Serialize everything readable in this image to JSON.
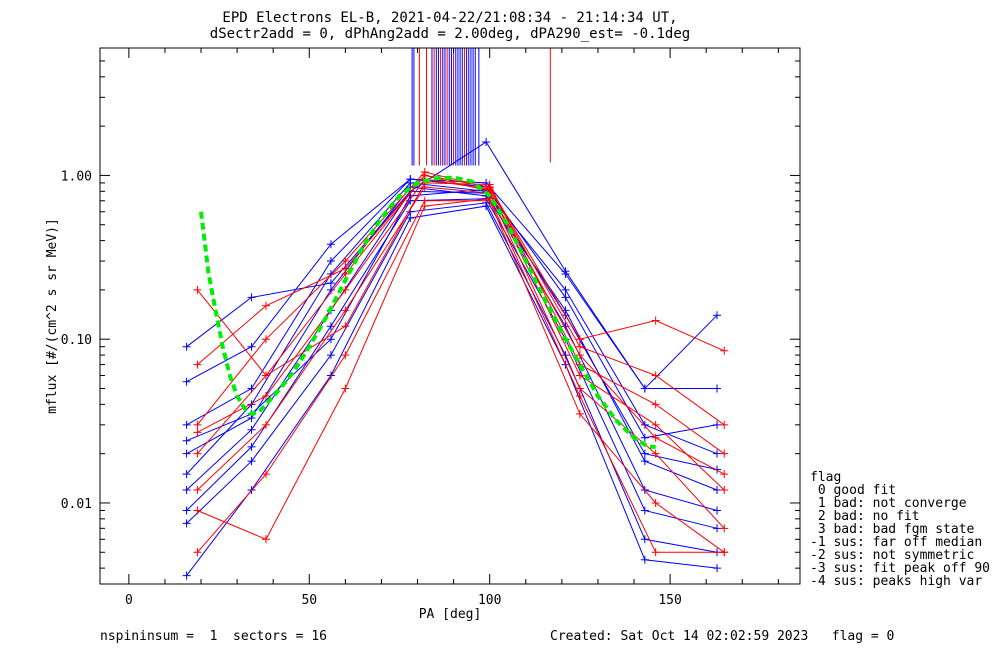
{
  "chart_data": {
    "type": "line",
    "title": "EPD Electrons EL-B, 2021-04-22/21:08:34 - 21:14:34 UT,",
    "subtitle": "dSectr2add = 0, dPhAng2add = 2.00deg, dPA290_est=  -0.1deg",
    "xlabel": "PA [deg]",
    "ylabel": "mflux [#/(cm^2 s sr MeV)]",
    "xlim": [
      -8,
      186
    ],
    "ylim": [
      0.0032,
      6
    ],
    "yscale": "log",
    "xticks": [
      {
        "value": 0,
        "label": "0"
      },
      {
        "value": 50,
        "label": "50"
      },
      {
        "value": 100,
        "label": "100"
      },
      {
        "value": 150,
        "label": "150"
      }
    ],
    "yticks": [
      {
        "value": 0.01,
        "label": "0.01"
      },
      {
        "value": 0.1,
        "label": "0.10"
      },
      {
        "value": 1.0,
        "label": "1.00"
      }
    ],
    "sector_pa": [
      16,
      34,
      56,
      78,
      99,
      121,
      143,
      163
    ],
    "sector_pa_red": [
      19,
      38,
      60,
      82,
      100,
      125,
      146,
      165
    ],
    "blue_color": "#0000ff",
    "red_color": "#ff0000",
    "fit_color": "#00ee00",
    "series": [
      {
        "color_key": "blue",
        "x": [
          16,
          34,
          56,
          78,
          99,
          121,
          143,
          163
        ],
        "y": [
          0.02,
          0.033,
          0.2,
          0.85,
          0.75,
          0.15,
          0.018,
          0.012
        ]
      },
      {
        "color_key": "blue",
        "x": [
          16,
          34,
          56,
          78,
          99,
          121,
          143,
          163
        ],
        "y": [
          0.009,
          0.022,
          0.12,
          0.7,
          0.72,
          0.1,
          0.009,
          0.007
        ]
      },
      {
        "color_key": "blue",
        "x": [
          16,
          34,
          56,
          78,
          99,
          121,
          143,
          163
        ],
        "y": [
          0.055,
          0.09,
          0.38,
          0.95,
          0.9,
          0.25,
          0.05,
          0.05
        ]
      },
      {
        "color_key": "blue",
        "x": [
          16,
          34,
          56,
          78,
          99,
          121,
          143,
          163
        ],
        "y": [
          0.015,
          0.04,
          0.25,
          0.9,
          0.8,
          0.2,
          0.03,
          0.02
        ]
      },
      {
        "color_key": "blue",
        "x": [
          16,
          34,
          56,
          78,
          99,
          121,
          143,
          163
        ],
        "y": [
          0.0075,
          0.018,
          0.08,
          0.6,
          0.68,
          0.08,
          0.006,
          0.005
        ]
      },
      {
        "color_key": "blue",
        "x": [
          16,
          34,
          56,
          78,
          99,
          121,
          143,
          163
        ],
        "y": [
          0.03,
          0.05,
          0.3,
          0.95,
          0.85,
          0.18,
          0.025,
          0.03
        ]
      },
      {
        "color_key": "blue",
        "x": [
          16,
          34,
          56,
          78,
          99,
          121,
          143,
          163
        ],
        "y": [
          0.0036,
          0.012,
          0.06,
          0.55,
          0.65,
          0.07,
          0.0045,
          0.004
        ]
      },
      {
        "color_key": "blue",
        "x": [
          16,
          34,
          56,
          78,
          99,
          121,
          143,
          163
        ],
        "y": [
          0.09,
          0.18,
          0.22,
          0.8,
          1.6,
          0.26,
          0.05,
          0.14
        ]
      },
      {
        "color_key": "blue",
        "x": [
          16,
          34,
          56,
          78,
          99,
          121,
          143,
          163
        ],
        "y": [
          0.012,
          0.028,
          0.15,
          0.8,
          0.78,
          0.12,
          0.012,
          0.009
        ]
      },
      {
        "color_key": "blue",
        "x": [
          16,
          34,
          56,
          78,
          99,
          121,
          143,
          163
        ],
        "y": [
          0.024,
          0.035,
          0.1,
          0.75,
          0.82,
          0.14,
          0.02,
          0.016
        ]
      },
      {
        "color_key": "red",
        "x": [
          19,
          38,
          60,
          82,
          100,
          125,
          146,
          165
        ],
        "y": [
          0.027,
          0.045,
          0.2,
          0.95,
          0.82,
          0.06,
          0.03,
          0.012
        ]
      },
      {
        "color_key": "red",
        "x": [
          19,
          38,
          60,
          82,
          100,
          125,
          146,
          165
        ],
        "y": [
          0.07,
          0.16,
          0.27,
          1.0,
          0.85,
          0.1,
          0.13,
          0.085
        ]
      },
      {
        "color_key": "red",
        "x": [
          19,
          38,
          60,
          82,
          100,
          125,
          146,
          165
        ],
        "y": [
          0.012,
          0.03,
          0.15,
          0.85,
          0.78,
          0.05,
          0.02,
          0.007
        ]
      },
      {
        "color_key": "red",
        "x": [
          19,
          38,
          60,
          82,
          100,
          125,
          146,
          165
        ],
        "y": [
          0.005,
          0.015,
          0.08,
          0.7,
          0.7,
          0.035,
          0.01,
          0.005
        ]
      },
      {
        "color_key": "red",
        "x": [
          19,
          38,
          60,
          82,
          100,
          125,
          146,
          165
        ],
        "y": [
          0.2,
          0.06,
          0.12,
          0.9,
          0.88,
          0.07,
          0.04,
          0.02
        ]
      },
      {
        "color_key": "red",
        "x": [
          19,
          38,
          60,
          82,
          100,
          125,
          146,
          165
        ],
        "y": [
          0.02,
          0.06,
          0.25,
          1.0,
          0.8,
          0.08,
          0.025,
          0.015
        ]
      },
      {
        "color_key": "red",
        "x": [
          19,
          38,
          60,
          82,
          100,
          125,
          146,
          165
        ],
        "y": [
          0.009,
          0.006,
          0.05,
          0.65,
          0.72,
          0.045,
          0.005,
          0.005
        ]
      },
      {
        "color_key": "red",
        "x": [
          19,
          38,
          60,
          82,
          100,
          125,
          146,
          165
        ],
        "y": [
          0.03,
          0.1,
          0.3,
          1.05,
          0.84,
          0.09,
          0.06,
          0.03
        ]
      }
    ],
    "fit_curve": {
      "x": [
        20,
        21,
        22,
        24,
        26,
        28,
        30,
        32,
        34,
        36,
        38,
        42,
        46,
        50,
        55,
        60,
        65,
        70,
        75,
        80,
        85,
        90,
        95,
        100,
        105,
        110,
        115,
        120,
        125,
        130,
        135,
        140,
        144,
        146
      ],
      "y": [
        0.6,
        0.4,
        0.26,
        0.15,
        0.09,
        0.06,
        0.045,
        0.038,
        0.035,
        0.036,
        0.04,
        0.05,
        0.065,
        0.09,
        0.14,
        0.23,
        0.37,
        0.55,
        0.75,
        0.9,
        0.96,
        0.97,
        0.92,
        0.75,
        0.5,
        0.3,
        0.18,
        0.11,
        0.07,
        0.045,
        0.032,
        0.025,
        0.022,
        0.022
      ]
    },
    "spikes": [
      {
        "x": 78.5,
        "color_key": "blue"
      },
      {
        "x": 79.0,
        "color_key": "blue"
      },
      {
        "x": 80.5,
        "color_key": "red"
      },
      {
        "x": 82.5,
        "color_key": "red"
      },
      {
        "x": 84.0,
        "color_key": "blue"
      },
      {
        "x": 84.6,
        "color_key": "red"
      },
      {
        "x": 85.2,
        "color_key": "blue"
      },
      {
        "x": 85.8,
        "color_key": "blue"
      },
      {
        "x": 86.4,
        "color_key": "red"
      },
      {
        "x": 87.0,
        "color_key": "blue"
      },
      {
        "x": 87.6,
        "color_key": "blue"
      },
      {
        "x": 88.2,
        "color_key": "red"
      },
      {
        "x": 88.8,
        "color_key": "blue"
      },
      {
        "x": 89.4,
        "color_key": "blue"
      },
      {
        "x": 90.0,
        "color_key": "red"
      },
      {
        "x": 90.6,
        "color_key": "blue"
      },
      {
        "x": 91.2,
        "color_key": "blue"
      },
      {
        "x": 91.8,
        "color_key": "blue"
      },
      {
        "x": 92.4,
        "color_key": "blue"
      },
      {
        "x": 93.0,
        "color_key": "red"
      },
      {
        "x": 93.6,
        "color_key": "blue"
      },
      {
        "x": 94.2,
        "color_key": "blue"
      },
      {
        "x": 94.8,
        "color_key": "blue"
      },
      {
        "x": 95.4,
        "color_key": "blue"
      },
      {
        "x": 96.0,
        "color_key": "blue"
      },
      {
        "x": 97.0,
        "color_key": "blue"
      },
      {
        "x": 116.8,
        "color_key": "red"
      }
    ],
    "legend": {
      "title": "flag",
      "entries": [
        " 0 good fit",
        " 1 bad: not converge",
        " 2 bad: no fit",
        " 3 bad: bad fgm state",
        "-1 sus: far off median",
        "-2 sus: not symmetric",
        "-3 sus: fit peak off 90",
        "-4 sus: peaks high var"
      ]
    }
  },
  "footer": {
    "left": "nspininsum =  1  sectors = 16",
    "right": "Created: Sat Oct 14 02:02:59 2023   flag = 0"
  }
}
